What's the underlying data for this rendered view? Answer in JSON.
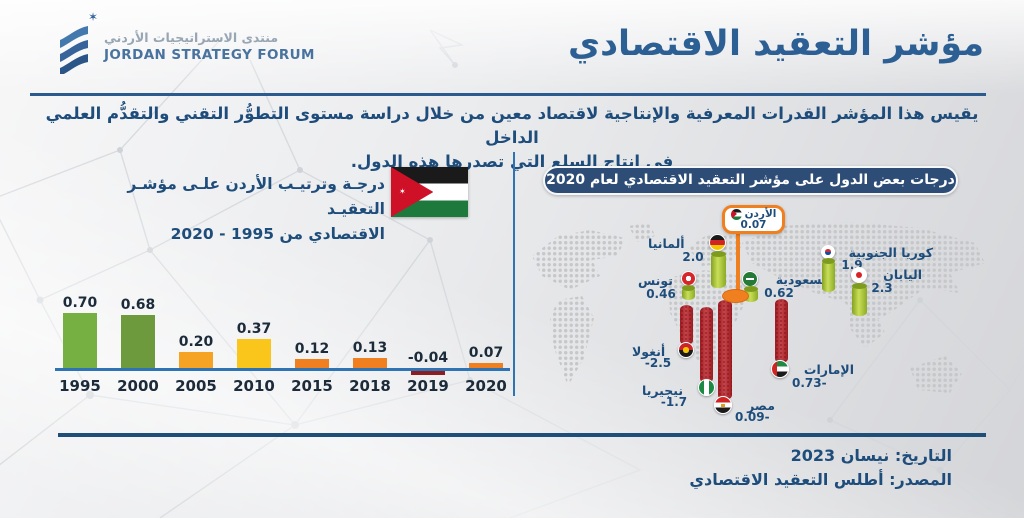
{
  "brand": {
    "name_ar": "منتدى الاستراتيجيات الأردني",
    "name_en": "JORDAN STRATEGY FORUM"
  },
  "title": "مؤشر التعقيد الاقتصادي",
  "intro": {
    "line1": "يقيس هذا المؤشر القدرات المعرفية والإنتاجية لاقتصاد معين من خلال دراسة مستوى التطوُّر التقني والتقدُّم العلمي الداخل",
    "line2": "في إنتاج السلع التي تصدرها هذه الدول."
  },
  "jordan_chart": {
    "title_line1": "درجـة وترتيـب الأردن علـى مؤشـر التعقيـد",
    "title_line2": "الاقتصادي من 1995 - 2020"
  },
  "map_section": {
    "header": "درجات بعض الدول على مؤشر التعقيد الاقتصادي لعام 2020"
  },
  "footer": {
    "date": "التاريخ: نيسان 2023",
    "source": "المصدر: أطلس التعقيد الاقتصادي"
  },
  "colors": {
    "navy_text": "#1e4d7b",
    "title_blue": "#2c5f93",
    "axis_blue": "#2e74b5",
    "accent_orange": "#f07f1f",
    "pill_navy": "#2d4d77",
    "positive_green": "#76b043",
    "negative_red": "#9c1b20"
  },
  "chart_data": [
    {
      "type": "bar",
      "title": "درجة وترتيب الأردن على مؤشر التعقيد الاقتصادي من 1995 - 2020",
      "categories": [
        "1995",
        "2000",
        "2005",
        "2010",
        "2015",
        "2018",
        "2019",
        "2020"
      ],
      "values": [
        0.7,
        0.68,
        0.2,
        0.37,
        0.12,
        0.13,
        -0.04,
        0.07
      ],
      "display_values": [
        "0.70",
        "0.68",
        "0.20",
        "0.37",
        "0.12",
        "0.13",
        "-0.04",
        "0.07"
      ],
      "bar_colors": [
        "#76b043",
        "#6d9a3d",
        "#f6a223",
        "#fbc61c",
        "#f07f1f",
        "#f07f1f",
        "#8e1d22",
        "#f07f1f"
      ],
      "xlabel": "",
      "ylabel": "",
      "ylim": [
        -0.1,
        0.8
      ],
      "grid": false,
      "axis_color": "#2e74b5"
    },
    {
      "type": "map-bar",
      "title": "درجات بعض الدول على مؤشر التعقيد الاقتصادي لعام 2020",
      "countries": [
        {
          "name": "الأردن",
          "value": 0.07,
          "display": "0.07",
          "highlighted": true
        },
        {
          "name": "ألمانيا",
          "value": 2.0,
          "display": "2.0"
        },
        {
          "name": "تونس",
          "value": 0.46,
          "display": "0.46"
        },
        {
          "name": "السعودية",
          "value": 0.62,
          "display": "0.62"
        },
        {
          "name": "كوريا الجنوبية",
          "value": 1.9,
          "display": "1.9"
        },
        {
          "name": "اليابان",
          "value": 2.3,
          "display": "2.3"
        },
        {
          "name": "أنغولا",
          "value": -2.5,
          "display": "-2.5"
        },
        {
          "name": "نيجيريا",
          "value": -1.7,
          "display": "-1.7"
        },
        {
          "name": "مصر",
          "value": -0.09,
          "display": "0.09-"
        },
        {
          "name": "الإمارات",
          "value": -0.73,
          "display": "0.73-"
        }
      ]
    }
  ]
}
